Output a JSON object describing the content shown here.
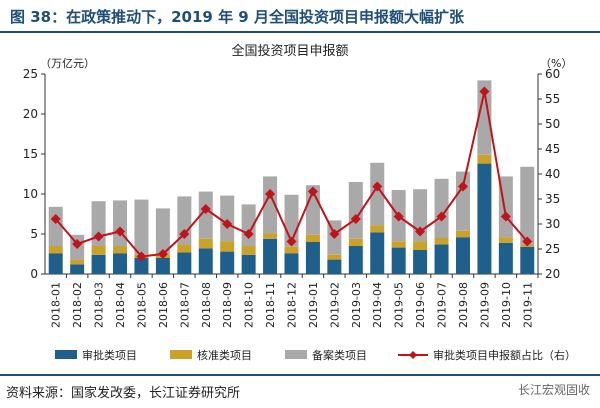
{
  "figure": {
    "title": "图 38：在政策推动下，2019 年 9 月全国投资项目申报额大幅扩张",
    "source": "资料来源：国家发改委，长江证券研究所",
    "watermark": "长江宏观固收"
  },
  "chart_data": {
    "type": "bar",
    "stacked": true,
    "title": "全国投资项目申报额",
    "ylabel": "（万亿元）",
    "y2label": "（%）",
    "ylim": [
      0,
      25
    ],
    "yticks": [
      0,
      5,
      10,
      15,
      20,
      25
    ],
    "y2lim": [
      20,
      60
    ],
    "y2ticks": [
      20,
      25,
      30,
      35,
      40,
      45,
      50,
      55,
      60
    ],
    "grid": false,
    "legend_position": "bottom",
    "categories": [
      "2018-01",
      "2018-02",
      "2018-03",
      "2018-04",
      "2018-05",
      "2018-06",
      "2018-07",
      "2018-08",
      "2018-09",
      "2018-10",
      "2018-11",
      "2018-12",
      "2019-01",
      "2019-02",
      "2019-03",
      "2019-04",
      "2019-05",
      "2019-06",
      "2019-07",
      "2019-08",
      "2019-09",
      "2019-10",
      "2019-11"
    ],
    "series": [
      {
        "name": "审批类项目",
        "kind": "bar",
        "axis": "left",
        "color": "#1f5f8b",
        "values": [
          2.6,
          1.2,
          2.4,
          2.6,
          2.0,
          2.0,
          2.7,
          3.2,
          2.8,
          2.4,
          4.4,
          2.6,
          4.0,
          1.8,
          3.5,
          5.2,
          3.3,
          3.0,
          3.7,
          4.6,
          13.8,
          3.9,
          3.4
        ]
      },
      {
        "name": "核准类项目",
        "kind": "bar",
        "axis": "left",
        "color": "#c9a227",
        "values": [
          0.9,
          0.6,
          1.1,
          0.9,
          0.4,
          0.4,
          1.0,
          1.2,
          1.3,
          1.1,
          0.7,
          0.8,
          0.9,
          0.6,
          0.9,
          0.9,
          0.8,
          1.1,
          0.8,
          0.8,
          1.1,
          0.7,
          0.3
        ]
      },
      {
        "name": "备案类项目",
        "kind": "bar",
        "axis": "left",
        "color": "#a9a9a9",
        "values": [
          4.9,
          3.1,
          5.6,
          5.7,
          6.9,
          5.8,
          6.0,
          5.9,
          5.7,
          5.2,
          7.1,
          6.5,
          6.2,
          4.3,
          7.1,
          7.8,
          6.4,
          6.5,
          7.4,
          7.4,
          9.3,
          7.6,
          9.7
        ]
      },
      {
        "name": "审批类项目申报额占比（右）",
        "kind": "line",
        "axis": "right",
        "color": "#c0141c",
        "values": [
          31.0,
          26.0,
          27.5,
          28.5,
          23.5,
          24.0,
          28.0,
          33.0,
          30.0,
          28.0,
          36.0,
          26.5,
          36.5,
          28.0,
          31.0,
          37.5,
          31.5,
          28.5,
          31.5,
          37.5,
          56.5,
          31.5,
          26.5
        ]
      }
    ]
  }
}
